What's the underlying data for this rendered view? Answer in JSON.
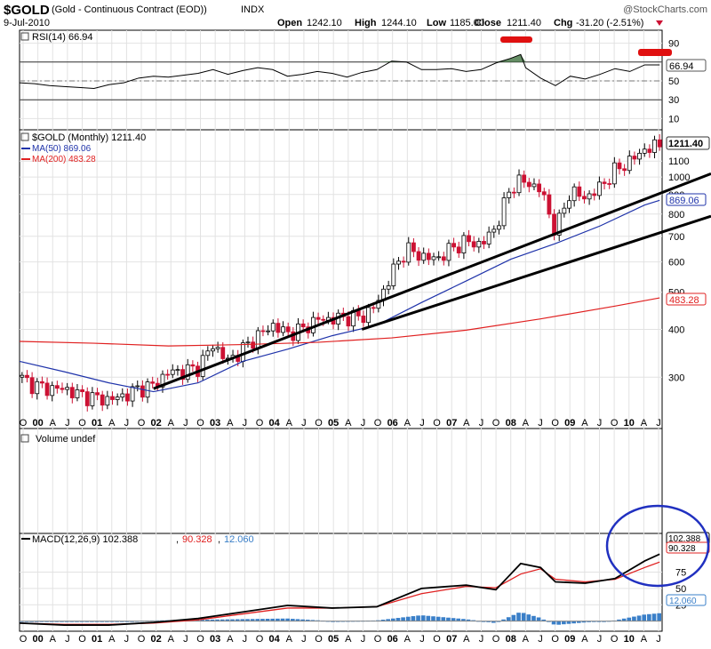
{
  "header": {
    "symbol": "$GOLD",
    "name": "(Gold - Continuous Contract (EOD))",
    "exchange": "INDX",
    "watermark": "@StockCharts.com",
    "date": "9-Jul-2010",
    "open_label": "Open",
    "open": "1242.10",
    "high_label": "High",
    "high": "1244.10",
    "low_label": "Low",
    "low": "1185.00",
    "close_label": "Close",
    "close": "1211.40",
    "chg_label": "Chg",
    "chg": "-31.20 (-2.51%)"
  },
  "colors": {
    "up": "#000000",
    "down": "#cc1133",
    "ma50": "#1f33aa",
    "ma200": "#e02020",
    "trend": "#000000",
    "macd": "#000000",
    "signal": "#e02020",
    "histogram": "#3a7fc8",
    "rsi_fill": "#4a7a4a",
    "highlight": "#e01010",
    "circle": "#2030c0"
  },
  "chart_data": [
    {
      "type": "line",
      "title": "RSI(14) 66.94",
      "panel": "rsi",
      "ylim": [
        0,
        100
      ],
      "yticks": [
        10,
        30,
        50,
        70,
        90
      ],
      "reference_lines": [
        30,
        50,
        70
      ],
      "last_value": 66.94,
      "x": [
        "1999-10",
        "2000-01",
        "2000-04",
        "2000-07",
        "2000-10",
        "2001-01",
        "2001-04",
        "2001-07",
        "2001-10",
        "2002-01",
        "2002-04",
        "2002-07",
        "2002-10",
        "2003-01",
        "2003-04",
        "2003-07",
        "2003-10",
        "2004-01",
        "2004-04",
        "2004-07",
        "2004-10",
        "2005-01",
        "2005-04",
        "2005-07",
        "2005-10",
        "2006-01",
        "2006-04",
        "2006-07",
        "2006-10",
        "2007-01",
        "2007-04",
        "2007-07",
        "2007-10",
        "2008-01",
        "2008-03",
        "2008-04",
        "2008-07",
        "2008-10",
        "2009-01",
        "2009-04",
        "2009-07",
        "2009-10",
        "2010-01",
        "2010-04",
        "2010-07"
      ],
      "values": [
        48,
        47,
        45,
        44,
        43,
        42,
        46,
        48,
        53,
        55,
        54,
        56,
        58,
        62,
        57,
        61,
        64,
        62,
        55,
        57,
        60,
        58,
        54,
        59,
        62,
        71,
        70,
        62,
        62,
        63,
        60,
        62,
        69,
        74,
        78,
        64,
        53,
        45,
        55,
        52,
        57,
        63,
        60,
        67,
        66.94
      ]
    },
    {
      "type": "line",
      "title": "$GOLD (Monthly) 1211.40",
      "panel": "price",
      "scale": "log",
      "ylim": [
        240,
        1300
      ],
      "yticks": [
        300,
        400,
        500,
        600,
        700,
        800,
        900,
        1000,
        1100
      ],
      "last_close": 1211.4,
      "x_tick_labels": [
        "O",
        "00",
        "A",
        "J",
        "O",
        "01",
        "A",
        "J",
        "O",
        "02",
        "A",
        "J",
        "O",
        "03",
        "A",
        "J",
        "O",
        "04",
        "A",
        "J",
        "O",
        "05",
        "A",
        "J",
        "O",
        "06",
        "A",
        "J",
        "O",
        "07",
        "A",
        "J",
        "O",
        "08",
        "A",
        "J",
        "O",
        "09",
        "A",
        "J",
        "O",
        "10",
        "A",
        "J"
      ],
      "series": [
        {
          "name": "$GOLD",
          "x": [
            "1999-10",
            "2000-01",
            "2000-04",
            "2000-07",
            "2000-10",
            "2001-01",
            "2001-04",
            "2001-07",
            "2001-10",
            "2002-01",
            "2002-04",
            "2002-07",
            "2002-10",
            "2003-01",
            "2003-04",
            "2003-07",
            "2003-10",
            "2004-01",
            "2004-04",
            "2004-07",
            "2004-10",
            "2005-01",
            "2005-04",
            "2005-07",
            "2005-10",
            "2006-01",
            "2006-04",
            "2006-07",
            "2006-10",
            "2007-01",
            "2007-04",
            "2007-07",
            "2007-10",
            "2008-01",
            "2008-03",
            "2008-07",
            "2008-10",
            "2009-01",
            "2009-04",
            "2009-07",
            "2009-10",
            "2010-01",
            "2010-04",
            "2010-07"
          ],
          "values": [
            300,
            285,
            280,
            280,
            270,
            265,
            262,
            268,
            280,
            285,
            310,
            310,
            318,
            365,
            330,
            355,
            385,
            410,
            390,
            400,
            425,
            425,
            430,
            430,
            465,
            560,
            650,
            620,
            610,
            650,
            680,
            665,
            740,
            940,
            980,
            930,
            720,
            920,
            880,
            940,
            1040,
            1100,
            1180,
            1211.4
          ]
        },
        {
          "name": "MA(50) 869.06",
          "x": [
            "1999-10",
            "2000-07",
            "2001-04",
            "2002-01",
            "2002-10",
            "2003-07",
            "2004-04",
            "2005-01",
            "2005-10",
            "2006-07",
            "2007-04",
            "2008-01",
            "2008-10",
            "2009-07",
            "2010-04",
            "2010-07"
          ],
          "values": [
            330,
            310,
            290,
            275,
            290,
            330,
            355,
            385,
            410,
            470,
            535,
            610,
            670,
            745,
            845,
            869.06
          ]
        },
        {
          "name": "MA(200) 483.28",
          "x": [
            "1999-10",
            "2001-01",
            "2002-04",
            "2003-07",
            "2004-10",
            "2006-01",
            "2007-04",
            "2008-07",
            "2009-10",
            "2010-07"
          ],
          "values": [
            372,
            368,
            362,
            365,
            370,
            380,
            398,
            426,
            460,
            483.28
          ]
        }
      ],
      "trendlines": [
        {
          "from": [
            "2002-01",
            280
          ],
          "to": [
            "2010-07",
            1020
          ]
        },
        {
          "from": [
            "2005-07",
            400
          ],
          "to": [
            "2010-07",
            790
          ]
        }
      ]
    },
    {
      "type": "line",
      "title": "Volume undef",
      "panel": "volume",
      "values": []
    },
    {
      "type": "line",
      "title": "MACD(12,26,9) 102.388, 90.328, 12.060",
      "panel": "macd",
      "ylim": [
        -10,
        130
      ],
      "yticks": [
        25,
        50,
        75
      ],
      "last_values": {
        "macd": 102.388,
        "signal": 90.328,
        "histogram": 12.06
      },
      "x": [
        "1999-10",
        "2000-07",
        "2001-04",
        "2002-01",
        "2002-10",
        "2003-07",
        "2004-04",
        "2005-01",
        "2005-10",
        "2006-07",
        "2007-04",
        "2007-10",
        "2008-03",
        "2008-07",
        "2008-10",
        "2009-04",
        "2009-10",
        "2010-04",
        "2010-07"
      ],
      "series": [
        {
          "name": "MACD(12,26,9)",
          "values": [
            -3,
            -6,
            -6,
            -2,
            4,
            14,
            24,
            20,
            22,
            50,
            55,
            48,
            88,
            82,
            60,
            58,
            65,
            92,
            102.388
          ]
        },
        {
          "name": "signal",
          "values": [
            -3,
            -5,
            -5,
            -3,
            2,
            11,
            20,
            20,
            22,
            42,
            53,
            51,
            72,
            80,
            64,
            60,
            64,
            82,
            90.328
          ]
        },
        {
          "name": "histogram",
          "values": [
            0,
            -1,
            -1,
            1,
            2,
            3,
            4,
            0,
            1,
            9,
            3,
            -3,
            14,
            5,
            -6,
            -2,
            1,
            10,
            12.06
          ]
        }
      ]
    }
  ],
  "xaxis_labels": {
    "tick_labels": [
      "O",
      "00",
      "A",
      "J",
      "O",
      "01",
      "A",
      "J",
      "O",
      "02",
      "A",
      "J",
      "O",
      "03",
      "A",
      "J",
      "O",
      "04",
      "A",
      "J",
      "O",
      "05",
      "A",
      "J",
      "O",
      "06",
      "A",
      "J",
      "O",
      "07",
      "A",
      "J",
      "O",
      "08",
      "A",
      "J",
      "O",
      "09",
      "A",
      "J",
      "O",
      "10",
      "A",
      "J"
    ]
  },
  "labels": {
    "rsi_title": "RSI(14) 66.94",
    "rsi_value": "66.94",
    "price_title": "$GOLD (Monthly) 1211.40",
    "price_value": "1211.40",
    "ma50_title": "MA(50) 869.06",
    "ma50_value": "869.06",
    "ma200_title": "MA(200) 483.28",
    "ma200_value": "483.28",
    "volume_title": "Volume undef",
    "macd_title": "MACD(12,26,9) 102.388",
    "macd_sep1": ",",
    "macd_signal": "90.328",
    "macd_sep2": ",",
    "macd_hist": "12.060",
    "macd_value": "102.388",
    "signal_value": "90.328",
    "hist_value": "12.060"
  }
}
